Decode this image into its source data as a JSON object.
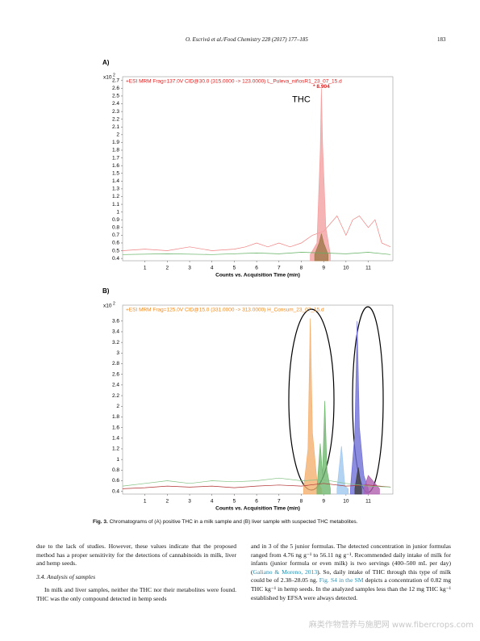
{
  "header": {
    "running_title": "O. Escrivá et al./Food Chemistry 228 (2017) 177–185",
    "page_number": "183"
  },
  "chart_data": [
    {
      "type": "line",
      "panel": "A)",
      "title": "+ESI MRM Frag=137.0V CID@30.0 (315.0000 -> 123.0000) L_Puleva_niñosR1_23_07_15.d",
      "title_color": "#e02020",
      "y_scale": {
        "label": "x10",
        "exponent": 2
      },
      "xlabel": "Counts vs. Acquisition Time (min)",
      "annotations": [
        {
          "text": "* 8.904",
          "x": 8.9,
          "y": 2.62,
          "color": "#e02020"
        },
        {
          "text": "THC",
          "x": 8.0,
          "y": 2.45,
          "color": "#000000"
        }
      ],
      "xlim": [
        0,
        12.1
      ],
      "ylim": [
        0.37,
        2.75
      ],
      "xticks": [
        1,
        2,
        3,
        4,
        5,
        6,
        7,
        8,
        9,
        10,
        11
      ],
      "yticks": [
        0.4,
        0.5,
        0.6,
        0.7,
        0.8,
        0.9,
        1,
        1.1,
        1.2,
        1.3,
        1.4,
        1.5,
        1.6,
        1.7,
        1.8,
        1.9,
        2,
        2.1,
        2.2,
        2.3,
        2.4,
        2.5,
        2.6,
        2.7
      ],
      "series": [
        {
          "color": "#f08080",
          "area": false,
          "x": [
            0,
            1,
            2,
            3,
            4,
            5,
            5.5,
            6,
            6.5,
            7,
            7.5,
            8,
            8.5,
            9,
            9.3,
            9.6,
            10,
            10.3,
            10.6,
            11,
            11.3,
            11.6,
            12
          ],
          "values": [
            0.5,
            0.52,
            0.5,
            0.55,
            0.5,
            0.52,
            0.55,
            0.6,
            0.55,
            0.6,
            0.55,
            0.6,
            0.7,
            0.75,
            0.85,
            0.95,
            0.7,
            0.9,
            0.95,
            0.8,
            0.9,
            0.6,
            0.55
          ]
        },
        {
          "color": "#f4a0a0",
          "area": true,
          "x": [
            8.4,
            8.7,
            8.85,
            8.9,
            8.95,
            9.1,
            9.3
          ],
          "values": [
            0.45,
            0.6,
            1.8,
            2.6,
            1.9,
            0.8,
            0.45
          ]
        },
        {
          "color": "#a0784a",
          "area": true,
          "x": [
            8.6,
            8.8,
            8.9,
            9.0,
            9.2
          ],
          "values": [
            0.45,
            0.6,
            0.72,
            0.6,
            0.45
          ]
        },
        {
          "color": "#60b060",
          "area": false,
          "x": [
            0,
            2,
            4,
            6,
            7,
            8,
            9,
            10,
            11,
            12
          ],
          "values": [
            0.45,
            0.46,
            0.45,
            0.47,
            0.46,
            0.48,
            0.47,
            0.46,
            0.48,
            0.45
          ]
        }
      ]
    },
    {
      "type": "line",
      "panel": "B)",
      "title": "+ESI MRM Frag=125.0V CID@15.0 (331.0000 -> 313.0000) H_Consum_23_07_15.d",
      "title_color": "#f08a20",
      "y_scale": {
        "label": "x10",
        "exponent": 2
      },
      "xlabel": "Counts vs. Acquisition Time (min)",
      "annotations": [],
      "xlim": [
        0,
        12.1
      ],
      "ylim": [
        0.35,
        3.9
      ],
      "xticks": [
        1,
        2,
        3,
        4,
        5,
        6,
        7,
        8,
        9,
        10,
        11
      ],
      "yticks": [
        0.4,
        0.6,
        0.8,
        1,
        1.2,
        1.4,
        1.6,
        1.8,
        2,
        2.2,
        2.4,
        2.6,
        2.8,
        3,
        3.2,
        3.4,
        3.6
      ],
      "series": [
        {
          "color": "#f4b070",
          "area": true,
          "x": [
            8.1,
            8.3,
            8.4,
            8.5,
            8.7,
            8.9
          ],
          "values": [
            0.45,
            1.2,
            3.65,
            1.5,
            0.6,
            0.45
          ]
        },
        {
          "color": "#70b870",
          "area": true,
          "x": [
            8.7,
            8.85,
            8.95,
            9.05,
            9.15,
            9.3
          ],
          "values": [
            0.45,
            1.3,
            0.7,
            2.1,
            0.8,
            0.45
          ]
        },
        {
          "color": "#a0c8f0",
          "area": true,
          "x": [
            9.6,
            9.8,
            9.95,
            10.1
          ],
          "values": [
            0.45,
            1.25,
            0.5,
            0.45
          ]
        },
        {
          "color": "#7070d8",
          "area": true,
          "x": [
            10.2,
            10.4,
            10.5,
            10.6,
            10.8,
            11
          ],
          "values": [
            0.45,
            1.5,
            3.6,
            1.6,
            0.7,
            0.45
          ]
        },
        {
          "color": "#404040",
          "area": true,
          "x": [
            10.4,
            10.55,
            10.7
          ],
          "values": [
            0.45,
            0.85,
            0.45
          ]
        },
        {
          "color": "#b060b0",
          "area": true,
          "x": [
            10.8,
            11.0,
            11.2,
            11.5
          ],
          "values": [
            0.45,
            0.7,
            0.6,
            0.45
          ]
        },
        {
          "color": "#b03030",
          "area": false,
          "x": [
            0,
            1,
            2,
            3,
            4,
            5,
            6,
            7,
            8,
            9,
            10,
            11,
            12
          ],
          "values": [
            0.45,
            0.47,
            0.5,
            0.48,
            0.5,
            0.47,
            0.5,
            0.52,
            0.5,
            0.55,
            0.5,
            0.52,
            0.48
          ]
        },
        {
          "color": "#80c080",
          "area": false,
          "x": [
            0,
            1,
            2,
            3,
            4,
            5,
            6,
            7,
            8,
            9,
            10,
            11,
            12
          ],
          "values": [
            0.5,
            0.55,
            0.6,
            0.55,
            0.6,
            0.58,
            0.6,
            0.65,
            0.6,
            0.62,
            0.55,
            0.5,
            0.48
          ]
        }
      ]
    }
  ],
  "caption": {
    "label": "Fig. 3.",
    "text": "Chromatograms of (A) positive THC in a milk sample and (B) liver sample with suspected THC metabolites."
  },
  "body": {
    "left": [
      {
        "kind": "p",
        "text": "due to the lack of studies. However, these values indicate that the proposed method has a proper sensitivity for the detections of cannabinoids in milk, liver and hemp seeds."
      },
      {
        "kind": "h",
        "text": "3.4. Analysis of samples"
      },
      {
        "kind": "p",
        "indent": true,
        "text": "In milk and liver samples, neither the THC nor their metabolites were found. THC was the only compound detected in hemp seeds"
      }
    ],
    "right": [
      {
        "text": "and in 3 of the 5 junior formulas. The detected concentration in junior formulas ranged from 4.76 ng g⁻¹ to 56.11 ng g⁻¹. Recommended daily intake of milk for infants (junior formula or even milk) is two servings (400–500 mL per day) ("
      },
      {
        "text": "Galiano & Moreno, 2013",
        "link": true
      },
      {
        "text": "). So, daily intake of THC through this type of milk could be of 2.38–28.05 ng. "
      },
      {
        "text": "Fig. S4 in the SM",
        "link": true
      },
      {
        "text": " depicts a concentration of 0.82 mg THC kg⁻¹ in hemp seeds. In the analyzed samples less than the 12 mg THC kg⁻¹ established by EFSA were always detected."
      }
    ]
  },
  "watermark": "麻类作物营养与施肥网 www.fibercrops.com"
}
